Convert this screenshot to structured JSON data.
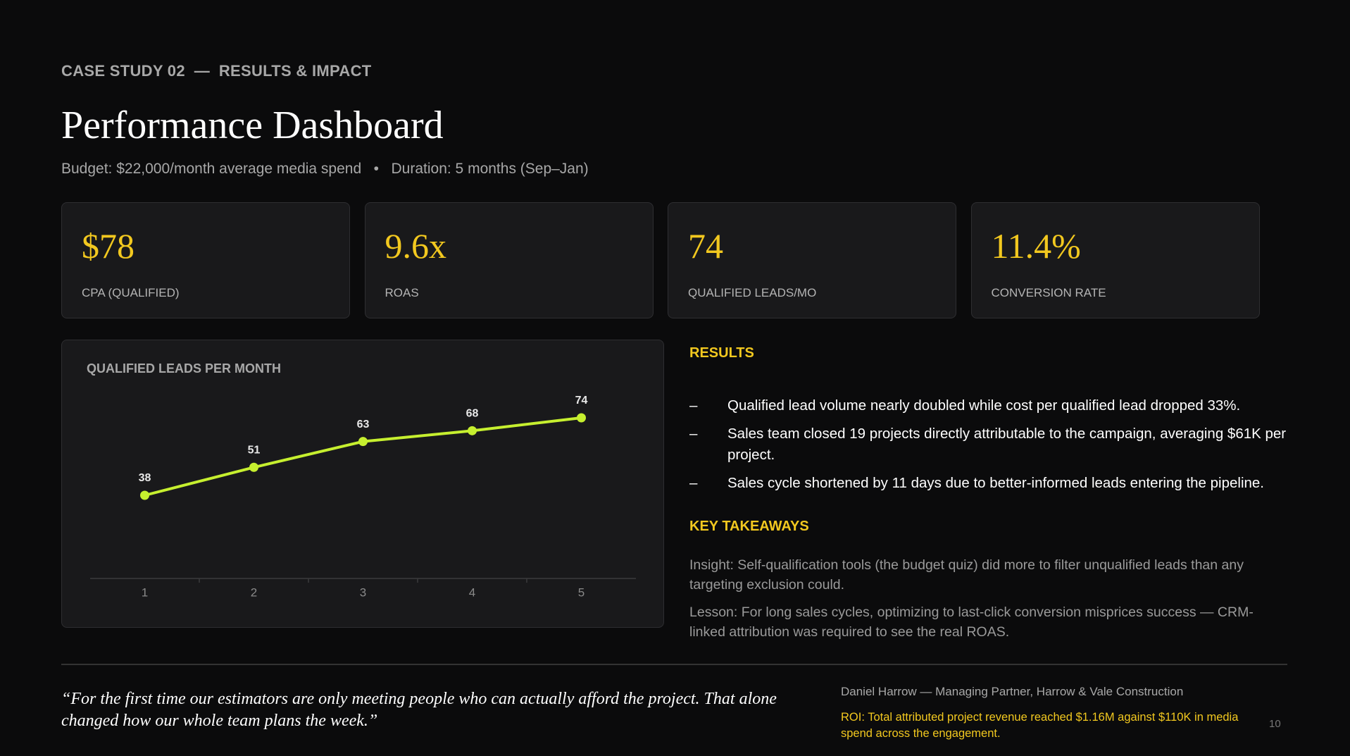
{
  "header": {
    "eyebrow": "CASE STUDY 02",
    "eyebrow_section": "RESULTS & IMPACT",
    "title": "Performance Dashboard",
    "meta": [
      "Budget: $22,000/month average media spend",
      "Duration: 5 months (Sep–Jan)"
    ]
  },
  "kpis": [
    {
      "value": "$78",
      "label": "CPA (QUALIFIED)"
    },
    {
      "value": "9.6x",
      "label": "ROAS"
    },
    {
      "value": "74",
      "label": "QUALIFIED LEADS/MO"
    },
    {
      "value": "11.4%",
      "label": "CONVERSION RATE"
    }
  ],
  "chart_data": {
    "type": "line",
    "title": "QUALIFIED LEADS PER MONTH",
    "categories": [
      "1",
      "2",
      "3",
      "4",
      "5"
    ],
    "values": [
      38,
      51,
      63,
      68,
      74
    ],
    "color": "#c6ef2f"
  },
  "results": {
    "heading": "RESULTS",
    "items": [
      "Qualified lead volume nearly doubled while cost per qualified lead dropped 33%.",
      "Sales team closed 19 projects directly attributable to the campaign, averaging $61K per project.",
      "Sales cycle shortened by 11 days due to better-informed leads entering the pipeline."
    ]
  },
  "takeaways": {
    "heading": "KEY TAKEAWAYS",
    "items": [
      "Insight: Self-qualification tools (the budget quiz) did more to filter unqualified leads than any targeting exclusion could.",
      "Lesson: For long sales cycles, optimizing to last-click conversion misprices success — CRM-linked attribution was required to see the real ROAS."
    ]
  },
  "quote": {
    "text": "“For the first time our estimators are only meeting people who can actually afford the project. That alone changed how our whole team plans the week.”",
    "attribution": "Daniel Harrow — Managing Partner, Harrow & Vale Construction",
    "roi": "ROI: Total attributed project revenue reached $1.16M against $110K in media spend across the engagement."
  },
  "page_number": "10"
}
